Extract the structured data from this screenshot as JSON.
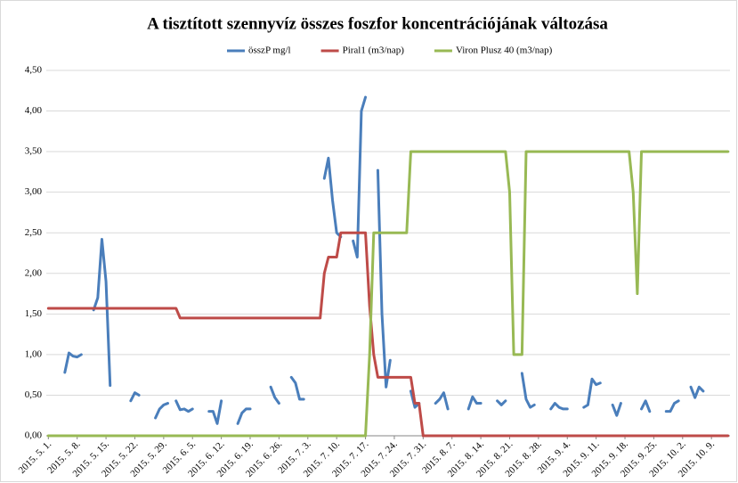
{
  "chart_data": {
    "type": "line",
    "title": "A tisztított szennyvíz összes foszfor koncentrációjának változása",
    "categories": [
      "2015. 5. 1.",
      null,
      null,
      null,
      null,
      null,
      null,
      "2015. 5. 8.",
      null,
      null,
      null,
      null,
      null,
      null,
      "2015. 5. 15.",
      null,
      null,
      null,
      null,
      null,
      null,
      "2015. 5. 22.",
      null,
      null,
      null,
      null,
      null,
      null,
      "2015. 5. 29.",
      null,
      null,
      null,
      null,
      null,
      null,
      "2015. 6. 5.",
      null,
      null,
      null,
      null,
      null,
      null,
      "2015. 6. 12.",
      null,
      null,
      null,
      null,
      null,
      null,
      "2015. 6. 19.",
      null,
      null,
      null,
      null,
      null,
      null,
      "2015. 6. 26.",
      null,
      null,
      null,
      null,
      null,
      null,
      "2015. 7. 3.",
      null,
      null,
      null,
      null,
      null,
      null,
      "2015. 7. 10.",
      null,
      null,
      null,
      null,
      null,
      null,
      "2015. 7. 17.",
      null,
      null,
      null,
      null,
      null,
      null,
      "2015. 7. 24.",
      null,
      null,
      null,
      null,
      null,
      null,
      "2015. 7. 31.",
      null,
      null,
      null,
      null,
      null,
      null,
      "2015. 8. 7.",
      null,
      null,
      null,
      null,
      null,
      null,
      "2015. 8. 14.",
      null,
      null,
      null,
      null,
      null,
      null,
      "2015. 8. 21.",
      null,
      null,
      null,
      null,
      null,
      null,
      "2015. 8. 28.",
      null,
      null,
      null,
      null,
      null,
      null,
      "2015. 9. 4.",
      null,
      null,
      null,
      null,
      null,
      null,
      "2015. 9. 11.",
      null,
      null,
      null,
      null,
      null,
      null,
      "2015. 9. 18.",
      null,
      null,
      null,
      null,
      null,
      null,
      "2015. 9. 25.",
      null,
      null,
      null,
      null,
      null,
      null,
      "2015. 10. 2.",
      null,
      null,
      null,
      null,
      null,
      null,
      "2015. 10. 9.",
      null,
      null,
      null,
      null
    ],
    "series": [
      {
        "name": "összP mg/l",
        "color": "#4a7ebb",
        "values": [
          null,
          null,
          null,
          null,
          0.78,
          1.02,
          0.98,
          0.97,
          1.0,
          null,
          null,
          1.55,
          1.7,
          2.42,
          1.9,
          0.62,
          null,
          null,
          null,
          null,
          0.43,
          0.53,
          0.5,
          null,
          null,
          null,
          0.22,
          0.33,
          0.38,
          0.4,
          null,
          0.43,
          0.32,
          0.33,
          0.3,
          0.33,
          null,
          null,
          null,
          0.3,
          0.3,
          0.15,
          0.43,
          null,
          null,
          null,
          0.15,
          0.28,
          0.33,
          0.33,
          null,
          null,
          null,
          null,
          0.6,
          0.47,
          0.4,
          null,
          null,
          0.72,
          0.65,
          0.45,
          0.45,
          null,
          null,
          null,
          null,
          3.17,
          3.42,
          2.9,
          2.5,
          2.45,
          null,
          null,
          2.4,
          2.2,
          4.0,
          4.17,
          null,
          null,
          3.27,
          1.5,
          0.6,
          0.93,
          null,
          null,
          null,
          null,
          0.55,
          0.35,
          0.4,
          null,
          null,
          null,
          0.4,
          0.45,
          0.53,
          0.33,
          null,
          null,
          null,
          null,
          0.33,
          0.48,
          0.4,
          0.4,
          null,
          null,
          null,
          0.43,
          0.38,
          0.43,
          null,
          null,
          null,
          0.77,
          0.45,
          0.35,
          0.38,
          null,
          null,
          null,
          0.33,
          0.4,
          0.35,
          0.33,
          0.33,
          null,
          null,
          null,
          0.35,
          0.38,
          0.7,
          0.63,
          0.65,
          null,
          null,
          0.38,
          0.25,
          0.4,
          null,
          null,
          null,
          null,
          0.33,
          0.43,
          0.3,
          null,
          null,
          null,
          0.3,
          0.3,
          0.4,
          0.43,
          null,
          null,
          0.6,
          0.47,
          0.6,
          0.55,
          null,
          null,
          null,
          null,
          null,
          null
        ]
      },
      {
        "name": "Piral1 (m3/nap)",
        "color": "#be4b48",
        "values": [
          1.57,
          1.57,
          1.57,
          1.57,
          1.57,
          1.57,
          1.57,
          1.57,
          1.57,
          1.57,
          1.57,
          1.57,
          1.57,
          1.57,
          1.57,
          1.57,
          1.57,
          1.57,
          1.57,
          1.57,
          1.57,
          1.57,
          1.57,
          1.57,
          1.57,
          1.57,
          1.57,
          1.57,
          1.57,
          1.57,
          1.57,
          1.57,
          1.45,
          1.45,
          1.45,
          1.45,
          1.45,
          1.45,
          1.45,
          1.45,
          1.45,
          1.45,
          1.45,
          1.45,
          1.45,
          1.45,
          1.45,
          1.45,
          1.45,
          1.45,
          1.45,
          1.45,
          1.45,
          1.45,
          1.45,
          1.45,
          1.45,
          1.45,
          1.45,
          1.45,
          1.45,
          1.45,
          1.45,
          1.45,
          1.45,
          1.45,
          1.45,
          2.0,
          2.2,
          2.2,
          2.2,
          2.5,
          2.5,
          2.5,
          2.5,
          2.5,
          2.5,
          2.5,
          1.6,
          1.0,
          0.72,
          0.72,
          0.72,
          0.72,
          0.72,
          0.72,
          0.72,
          0.72,
          0.72,
          0.4,
          0.4,
          0,
          0,
          0,
          0,
          0,
          0,
          0,
          0,
          0,
          0,
          0,
          0,
          0,
          0,
          0,
          0,
          0,
          0,
          0,
          0,
          0,
          0,
          0,
          0,
          0,
          0,
          0,
          0,
          0,
          0,
          0,
          0,
          0,
          0,
          0,
          0,
          0,
          0,
          0,
          0,
          0,
          0,
          0,
          0,
          0,
          0,
          0,
          0,
          0,
          0,
          0,
          0,
          0,
          0,
          0,
          0,
          0,
          0,
          0,
          0,
          0,
          0,
          0,
          0,
          0,
          0,
          0,
          0,
          0,
          0,
          0,
          0,
          0,
          0,
          0
        ]
      },
      {
        "name": "Viron Plusz 40 (m3/nap)",
        "color": "#98b954",
        "values": [
          0,
          0,
          0,
          0,
          0,
          0,
          0,
          0,
          0,
          0,
          0,
          0,
          0,
          0,
          0,
          0,
          0,
          0,
          0,
          0,
          0,
          0,
          0,
          0,
          0,
          0,
          0,
          0,
          0,
          0,
          0,
          0,
          0,
          0,
          0,
          0,
          0,
          0,
          0,
          0,
          0,
          0,
          0,
          0,
          0,
          0,
          0,
          0,
          0,
          0,
          0,
          0,
          0,
          0,
          0,
          0,
          0,
          0,
          0,
          0,
          0,
          0,
          0,
          0,
          0,
          0,
          0,
          0,
          0,
          0,
          0,
          0,
          0,
          0,
          0,
          0,
          0,
          0,
          1.0,
          2.5,
          2.5,
          2.5,
          2.5,
          2.5,
          2.5,
          2.5,
          2.5,
          2.5,
          3.5,
          3.5,
          3.5,
          3.5,
          3.5,
          3.5,
          3.5,
          3.5,
          3.5,
          3.5,
          3.5,
          3.5,
          3.5,
          3.5,
          3.5,
          3.5,
          3.5,
          3.5,
          3.5,
          3.5,
          3.5,
          3.5,
          3.5,
          3.5,
          3.0,
          1.0,
          1.0,
          1.0,
          3.5,
          3.5,
          3.5,
          3.5,
          3.5,
          3.5,
          3.5,
          3.5,
          3.5,
          3.5,
          3.5,
          3.5,
          3.5,
          3.5,
          3.5,
          3.5,
          3.5,
          3.5,
          3.5,
          3.5,
          3.5,
          3.5,
          3.5,
          3.5,
          3.5,
          3.5,
          3.0,
          1.75,
          3.5,
          3.5,
          3.5,
          3.5,
          3.5,
          3.5,
          3.5,
          3.5,
          3.5,
          3.5,
          3.5,
          3.5,
          3.5,
          3.5,
          3.5,
          3.5,
          3.5,
          3.5,
          3.5,
          3.5,
          3.5,
          3.5
        ]
      }
    ],
    "ylim": [
      0,
      4.5
    ],
    "yticks": [
      {
        "value": 0,
        "label": "0,00"
      },
      {
        "value": 0.5,
        "label": "0,50"
      },
      {
        "value": 1,
        "label": "1,00"
      },
      {
        "value": 1.5,
        "label": "1,50"
      },
      {
        "value": 2,
        "label": "2,00"
      },
      {
        "value": 2.5,
        "label": "2,50"
      },
      {
        "value": 3,
        "label": "3,00"
      },
      {
        "value": 3.5,
        "label": "3,50"
      },
      {
        "value": 4,
        "label": "4,00"
      },
      {
        "value": 4.5,
        "label": "4,50"
      }
    ],
    "grid": true,
    "legend": "top"
  }
}
